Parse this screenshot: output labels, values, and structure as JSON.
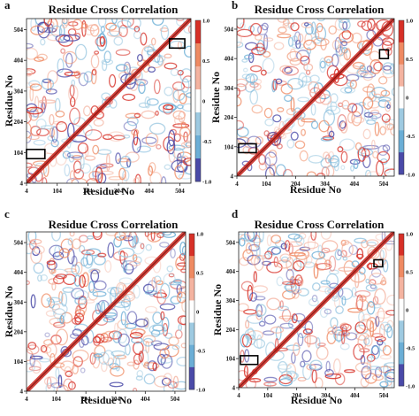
{
  "chart_data": [
    {
      "panel": "a",
      "type": "heatmap",
      "title": "Residue Cross Correlation",
      "xlabel": "Residue No",
      "ylabel": "Residue No",
      "x_ticks": [
        "4",
        "104",
        "204",
        "304",
        "404",
        "504"
      ],
      "y_ticks": [
        "4",
        "104",
        "204",
        "304",
        "404",
        "504"
      ],
      "xlim": [
        4,
        540
      ],
      "ylim": [
        4,
        540
      ],
      "colorbar": {
        "ticks": [
          "1.0",
          "0.5",
          "0",
          "-0.5",
          "-1.0"
        ],
        "range": [
          -1.0,
          1.0
        ]
      },
      "highlight_boxes": [
        {
          "x": [
            4,
            64
          ],
          "y": [
            84,
            114
          ]
        },
        {
          "x": [
            470,
            520
          ],
          "y": [
            444,
            474
          ]
        }
      ]
    },
    {
      "panel": "b",
      "type": "heatmap",
      "title": "Residue Cross Correlation",
      "xlabel": "Residue No",
      "ylabel": "Residue No",
      "x_ticks": [
        "4",
        "104",
        "204",
        "304",
        "404",
        "504"
      ],
      "y_ticks": [
        "4",
        "104",
        "204",
        "304",
        "404",
        "504"
      ],
      "xlim": [
        4,
        540
      ],
      "ylim": [
        4,
        540
      ],
      "colorbar": {
        "ticks": [
          "1.0",
          "0.5",
          "0",
          "-0.5",
          "-1.0"
        ],
        "range": [
          -1.0,
          1.0
        ]
      },
      "highlight_boxes": [
        {
          "x": [
            10,
            70
          ],
          "y": [
            84,
            114
          ]
        },
        {
          "x": [
            490,
            520
          ],
          "y": [
            404,
            434
          ]
        }
      ]
    },
    {
      "panel": "c",
      "type": "heatmap",
      "title": "Residue Cross Correlation",
      "xlabel": "Residue No",
      "ylabel": "Residue No",
      "x_ticks": [
        "4",
        "104",
        "204",
        "304",
        "404",
        "504"
      ],
      "y_ticks": [
        "4",
        "104",
        "204",
        "304",
        "404",
        "504"
      ],
      "xlim": [
        4,
        540
      ],
      "ylim": [
        4,
        540
      ],
      "colorbar": {
        "ticks": [
          "1.0",
          "0.5",
          "0",
          "-0.5",
          "-1.0"
        ],
        "range": [
          -1.0,
          1.0
        ]
      },
      "highlight_boxes": []
    },
    {
      "panel": "d",
      "type": "heatmap",
      "title": "Residue Cross Correlation",
      "xlabel": "Residue No",
      "ylabel": "Residue No",
      "x_ticks": [
        "4",
        "104",
        "204",
        "304",
        "404",
        "504"
      ],
      "y_ticks": [
        "4",
        "104",
        "204",
        "304",
        "404",
        "504"
      ],
      "xlim": [
        4,
        540
      ],
      "ylim": [
        4,
        540
      ],
      "colorbar": {
        "ticks": [
          "1.0",
          "0.5",
          "0",
          "-0.5",
          "-1.0"
        ],
        "range": [
          -1.0,
          1.0
        ]
      },
      "highlight_boxes": [
        {
          "x": [
            10,
            70
          ],
          "y": [
            84,
            114
          ]
        },
        {
          "x": [
            470,
            500
          ],
          "y": [
            420,
            444
          ]
        }
      ]
    }
  ],
  "colors": {
    "strong_pos": "#d73027",
    "pos": "#ef8a62",
    "weak_pos": "#f4b3a0",
    "weak_neg": "#9ecae1",
    "neg": "#6baed6",
    "strong_neg": "#4a4aa8",
    "diagonal": "#c8261f"
  }
}
